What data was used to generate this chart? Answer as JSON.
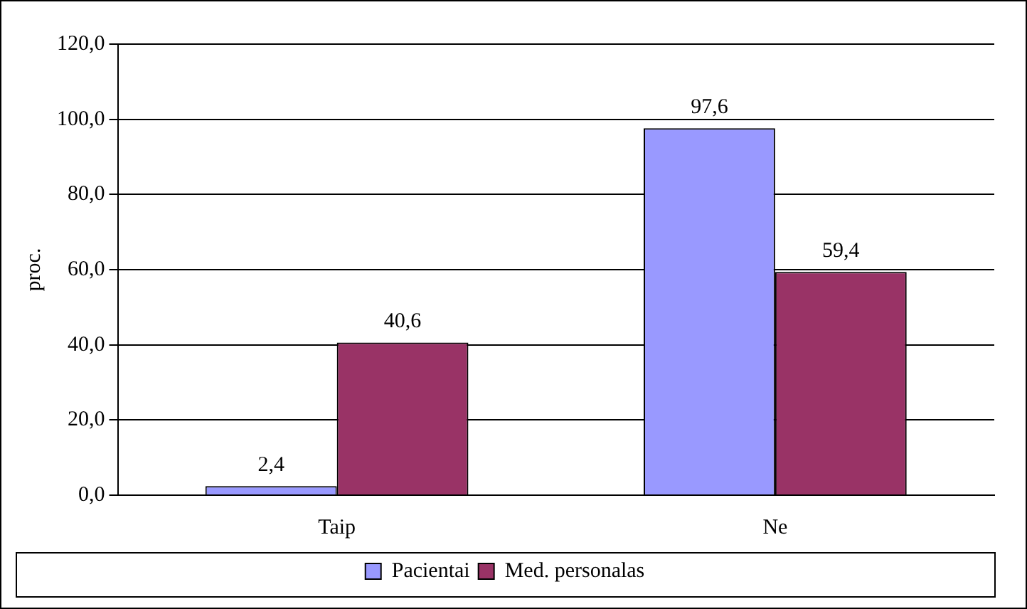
{
  "chart_data": {
    "type": "bar",
    "ylabel": "proc.",
    "categories": [
      "Taip",
      "Ne"
    ],
    "series": [
      {
        "name": "Pacientai",
        "color": "#9999ff",
        "values": [
          2.4,
          97.6
        ],
        "value_labels": [
          "2,4",
          "97,6"
        ]
      },
      {
        "name": "Med. personalas",
        "color": "#993366",
        "values": [
          40.6,
          59.4
        ],
        "value_labels": [
          "40,6",
          "59,4"
        ]
      }
    ],
    "ylim": [
      0,
      120
    ],
    "yticks": [
      {
        "value": 0,
        "label": "0,0"
      },
      {
        "value": 20,
        "label": "20,0"
      },
      {
        "value": 40,
        "label": "40,0"
      },
      {
        "value": 60,
        "label": "60,0"
      },
      {
        "value": 80,
        "label": "80,0"
      },
      {
        "value": 100,
        "label": "100,0"
      },
      {
        "value": 120,
        "label": "120,0"
      }
    ],
    "grid": "y",
    "legend": "bottom"
  }
}
